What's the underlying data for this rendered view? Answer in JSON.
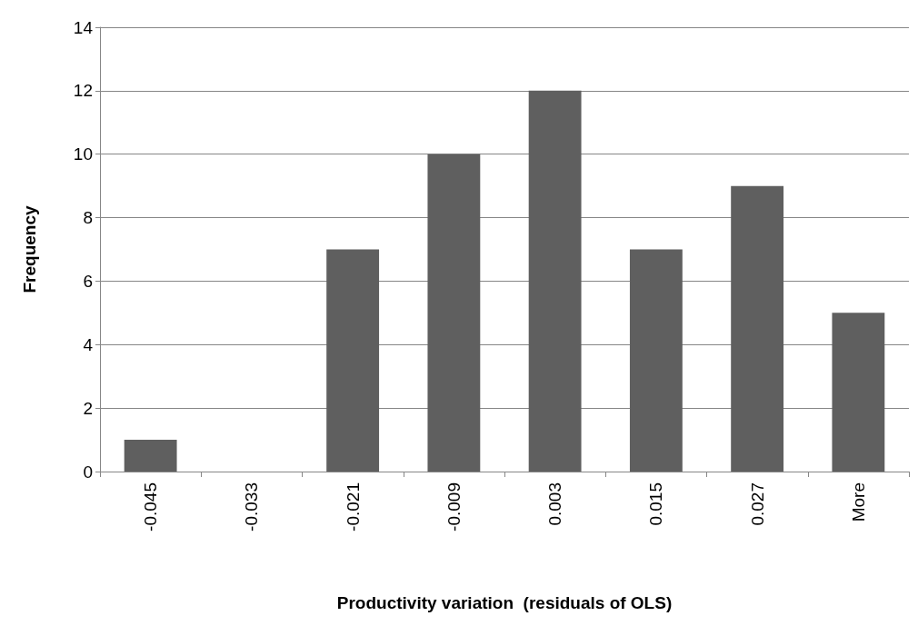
{
  "chart_data": {
    "type": "bar",
    "xlabel": "Productivity variation  (residuals of OLS)",
    "ylabel": "Frequency",
    "categories": [
      "-0.045",
      "-0.033",
      "-0.021",
      "-0.009",
      "0.003",
      "0.015",
      "0.027",
      "More"
    ],
    "values": [
      1,
      0,
      7,
      10,
      12,
      7,
      9,
      5
    ],
    "color": "#5f5f5f",
    "ylim": [
      0,
      14
    ],
    "yticks": [
      0,
      2,
      4,
      6,
      8,
      10,
      12,
      14
    ],
    "grid": "y"
  }
}
